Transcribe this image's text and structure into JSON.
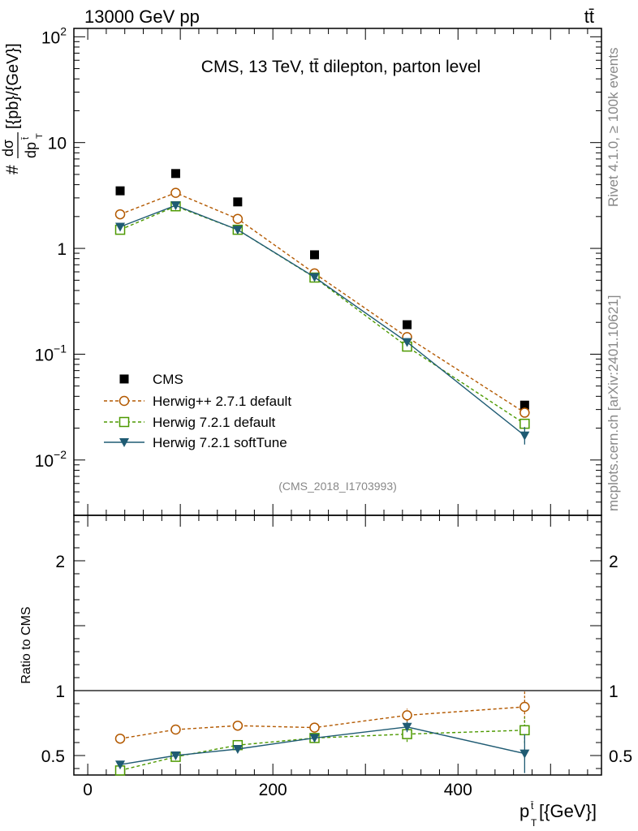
{
  "header": {
    "energy_label": "13000 GeV pp",
    "process_label": "tt̄"
  },
  "side_labels": {
    "rivet": "Rivet 4.1.0, ≥ 100k events",
    "mcplots": "mcplots.cern.ch [arXiv:2401.10621]"
  },
  "chart_data": [
    {
      "type": "scatter",
      "panel": "main",
      "title": "CMS, 13 TeV, tt̄ dilepton, parton level",
      "watermark": "(CMS_2018_I1703993)",
      "ylabel_num": "dσ",
      "ylabel_den": "dp",
      "ylabel_sup": "t̄",
      "ylabel_sub": "T",
      "ylabel_prefix": "#",
      "ylabel_units": "[{pb}/{GeV}]",
      "yscale": "log",
      "ylim": [
        0.003,
        120
      ],
      "xlim": [
        -15,
        555
      ],
      "y_ticks": [
        {
          "value": 0.01,
          "base": "10",
          "exp": "−2"
        },
        {
          "value": 0.1,
          "base": "10",
          "exp": "−1"
        },
        {
          "value": 1,
          "base": "1",
          "exp": ""
        },
        {
          "value": 10,
          "base": "10",
          "exp": ""
        },
        {
          "value": 100,
          "base": "10",
          "exp": "2"
        }
      ],
      "x": [
        35,
        95,
        162,
        245,
        345,
        472
      ],
      "series": [
        {
          "name": "CMS",
          "style": "data",
          "color": "#000000",
          "values": [
            3.5,
            5.1,
            2.75,
            0.87,
            0.19,
            0.033
          ]
        },
        {
          "name": "Herwig++ 2.7.1 default",
          "style": "circle-dashed",
          "color": "#b35900",
          "values": [
            2.1,
            3.35,
            1.9,
            0.58,
            0.145,
            0.028
          ]
        },
        {
          "name": "Herwig 7.2.1 default",
          "style": "square-dashed",
          "color": "#4d9900",
          "values": [
            1.5,
            2.5,
            1.5,
            0.53,
            0.118,
            0.022
          ]
        },
        {
          "name": "Herwig 7.2.1 softTune",
          "style": "triangle-solid",
          "color": "#1f5b73",
          "values": [
            1.6,
            2.55,
            1.5,
            0.535,
            0.13,
            0.017
          ]
        }
      ]
    },
    {
      "type": "line",
      "panel": "ratio",
      "ylabel": "Ratio to CMS",
      "xlabel_base": "p",
      "xlabel_sup": "t̄",
      "xlabel_sub": "T",
      "xlabel_units": "[{GeV}]",
      "ylim": [
        0.35,
        2.35
      ],
      "xlim": [
        -15,
        555
      ],
      "y_ticks": [
        0.5,
        1,
        2
      ],
      "y_tick_labels": [
        "0.5",
        "1",
        "2"
      ],
      "x_ticks": [
        0,
        200,
        400
      ],
      "x_tick_labels": [
        "0",
        "200",
        "400"
      ],
      "x": [
        35,
        95,
        162,
        245,
        345,
        472
      ],
      "series": [
        {
          "name": "Herwig++ 2.7.1 default",
          "style": "circle-dashed",
          "color": "#b35900",
          "values": [
            0.63,
            0.7,
            0.73,
            0.715,
            0.81,
            0.875
          ],
          "errors": [
            0.006,
            0.006,
            0.008,
            0.02,
            0.05,
            0.12
          ]
        },
        {
          "name": "Herwig 7.2.1 default",
          "style": "square-dashed",
          "color": "#4d9900",
          "values": [
            0.385,
            0.49,
            0.58,
            0.635,
            0.665,
            0.695
          ],
          "errors": [
            0.005,
            0.006,
            0.01,
            0.02,
            0.06,
            0.1
          ]
        },
        {
          "name": "Herwig 7.2.1 softTune",
          "style": "triangle-solid",
          "color": "#1f5b73",
          "values": [
            0.43,
            0.5,
            0.55,
            0.635,
            0.72,
            0.515
          ],
          "errors": [
            0.005,
            0.006,
            0.01,
            0.02,
            0.04,
            0.15
          ]
        }
      ]
    }
  ]
}
